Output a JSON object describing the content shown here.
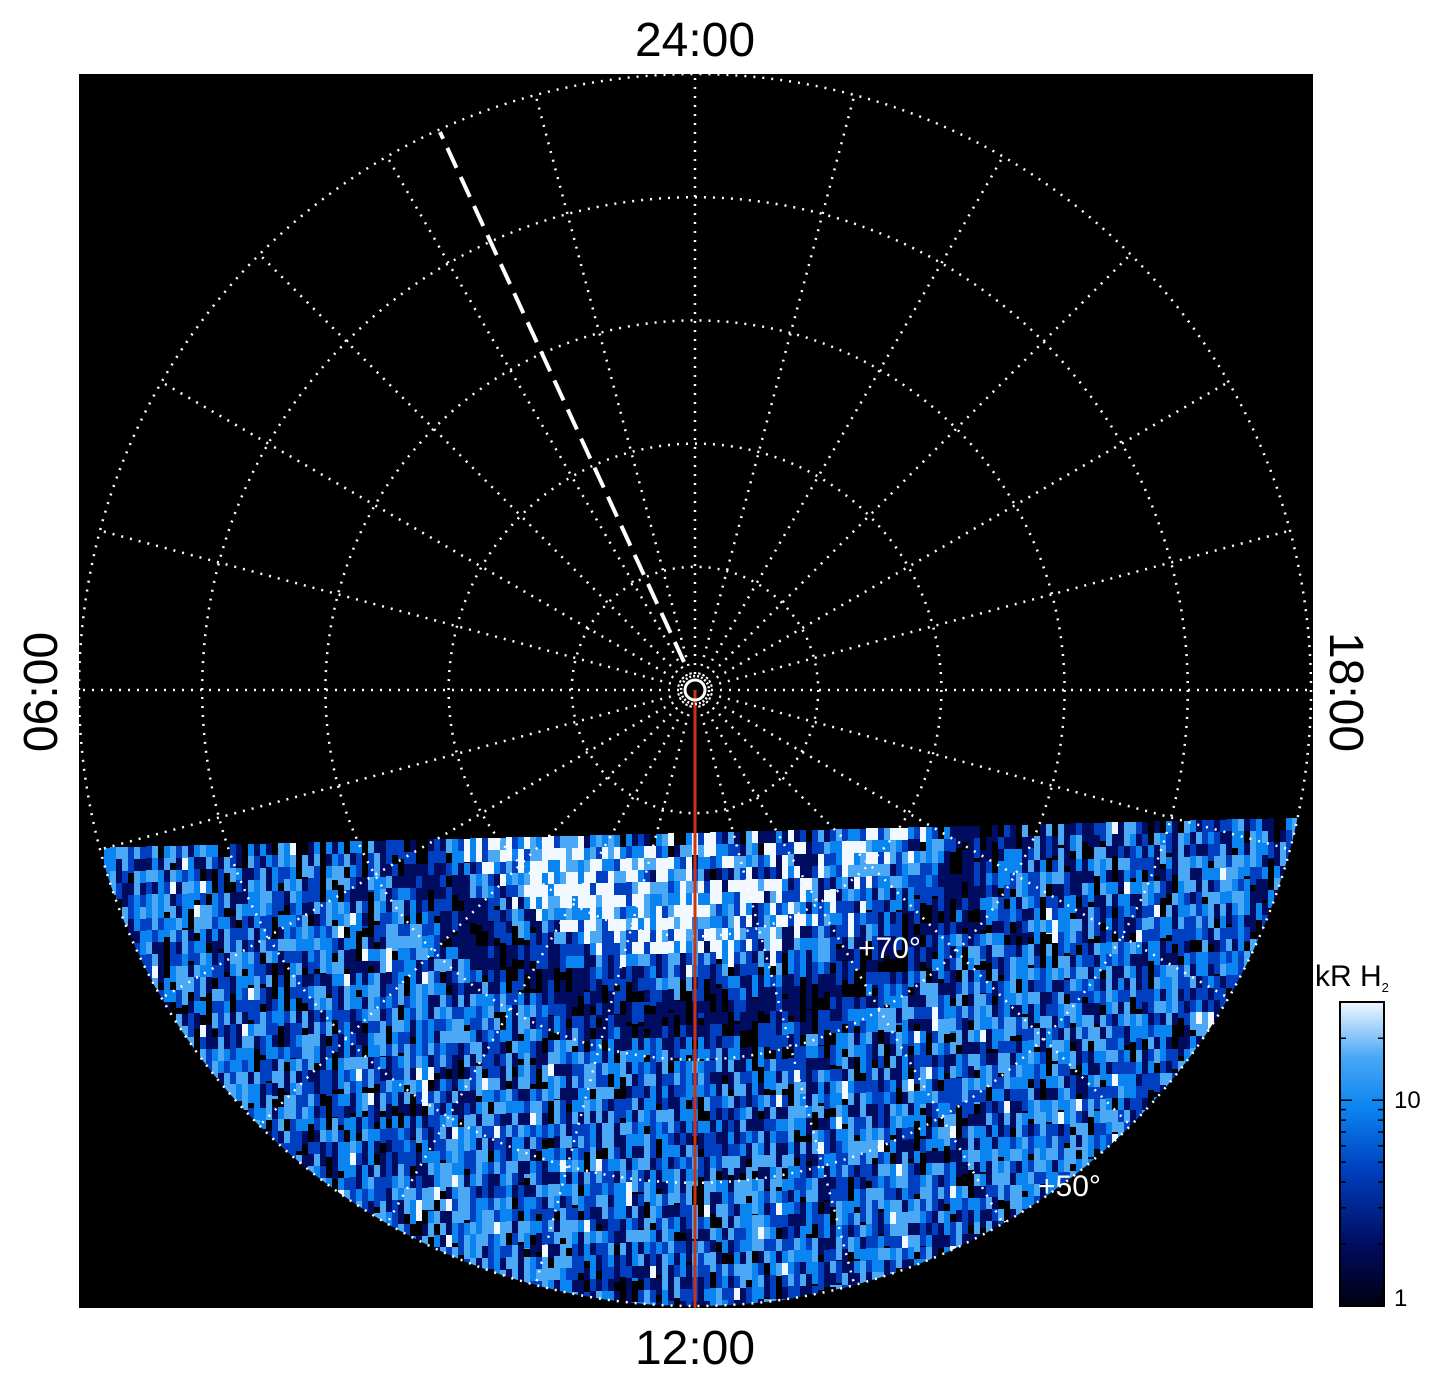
{
  "figure": {
    "local_time_labels": {
      "top": "24:00",
      "bottom": "12:00",
      "left": "06:00",
      "right": "18:00"
    },
    "latitude_labels": [
      "+70°",
      "+50°"
    ],
    "latitude_circles_deg": [
      90,
      80,
      70,
      60,
      50,
      40
    ],
    "meridian_spacing_hours": 1,
    "background_color": "#000000",
    "grid_color": "#ffffff",
    "marker_line_color": "#cc3311",
    "dashed_line_color": "#ffffff",
    "emission_observed_region": "dayside (below ~07:30–16:30 boundary)",
    "colorbar": {
      "title_main": "kR H",
      "title_sub": "2",
      "ticks": [
        "10",
        "1"
      ],
      "scale": "log",
      "range": [
        1,
        30
      ],
      "colors": [
        "#000010",
        "#000c60",
        "#0040c0",
        "#0a84f0",
        "#4aa8f5",
        "#f2f8ff"
      ]
    }
  }
}
